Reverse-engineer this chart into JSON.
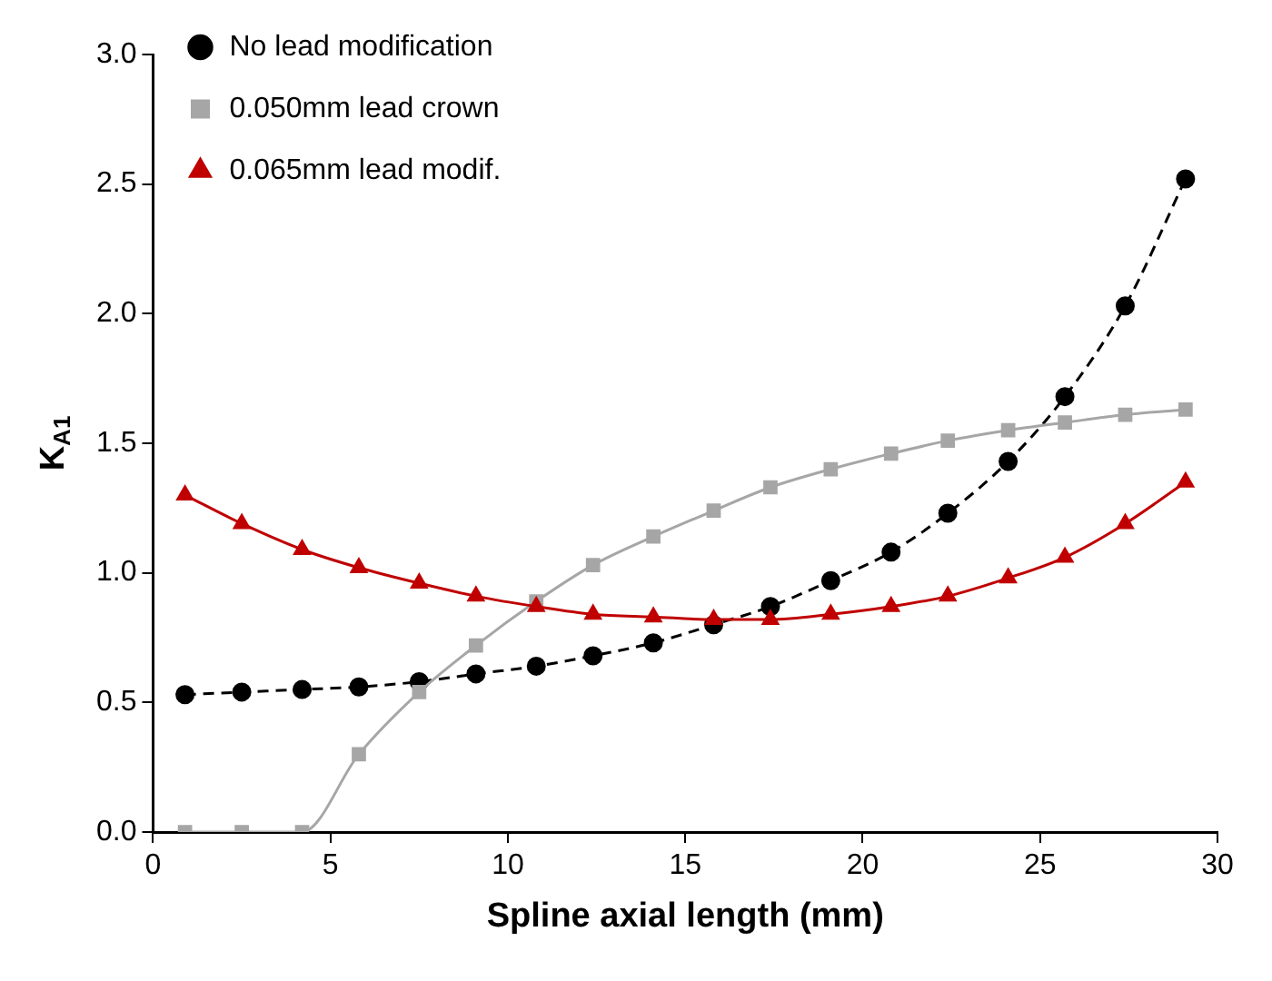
{
  "chart_data": {
    "type": "line",
    "xlabel": "Spline axial length (mm)",
    "ylabel": "K$_{A1}$",
    "xlim": [
      0,
      30
    ],
    "xticks": [
      0,
      5,
      10,
      15,
      20,
      25,
      30
    ],
    "ylim": [
      0,
      3
    ],
    "yticks": [
      {
        "value": 0,
        "label": "0.0"
      },
      0.5,
      {
        "value": 1,
        "label": "1.0"
      },
      1.5,
      {
        "value": 2,
        "label": "2.0"
      },
      2.5,
      {
        "value": 3,
        "label": "3.0"
      }
    ],
    "x": [
      0.9,
      2.5,
      4.2,
      5.8,
      7.5,
      9.1,
      10.8,
      12.4,
      14.1,
      15.8,
      17.4,
      19.1,
      20.8,
      22.4,
      24.1,
      25.7,
      27.4,
      29.1
    ],
    "grid": false,
    "legend": "top left",
    "series": [
      {
        "name": "No lead modification",
        "color": "#000000",
        "marker": "circle",
        "line_style": "dashed",
        "values": [
          0.53,
          0.54,
          0.55,
          0.56,
          0.58,
          0.61,
          0.64,
          0.68,
          0.73,
          0.8,
          0.87,
          0.97,
          1.08,
          1.23,
          1.43,
          1.68,
          2.03,
          2.52
        ]
      },
      {
        "name": "0.050mm lead crown",
        "color": "#a6a6a6",
        "marker": "square",
        "line_style": "solid",
        "values": [
          0,
          0,
          0,
          0.3,
          0.54,
          0.72,
          0.89,
          1.03,
          1.14,
          1.24,
          1.33,
          1.4,
          1.46,
          1.51,
          1.55,
          1.58,
          1.61,
          1.63
        ]
      },
      {
        "name": "0.065mm lead modif.",
        "color": "#c00000",
        "marker": "triangle",
        "line_style": "solid",
        "values": [
          1.3,
          1.19,
          1.09,
          1.02,
          0.96,
          0.91,
          0.87,
          0.84,
          0.83,
          0.82,
          0.82,
          0.84,
          0.87,
          0.91,
          0.98,
          1.06,
          1.19,
          1.35
        ]
      }
    ]
  }
}
